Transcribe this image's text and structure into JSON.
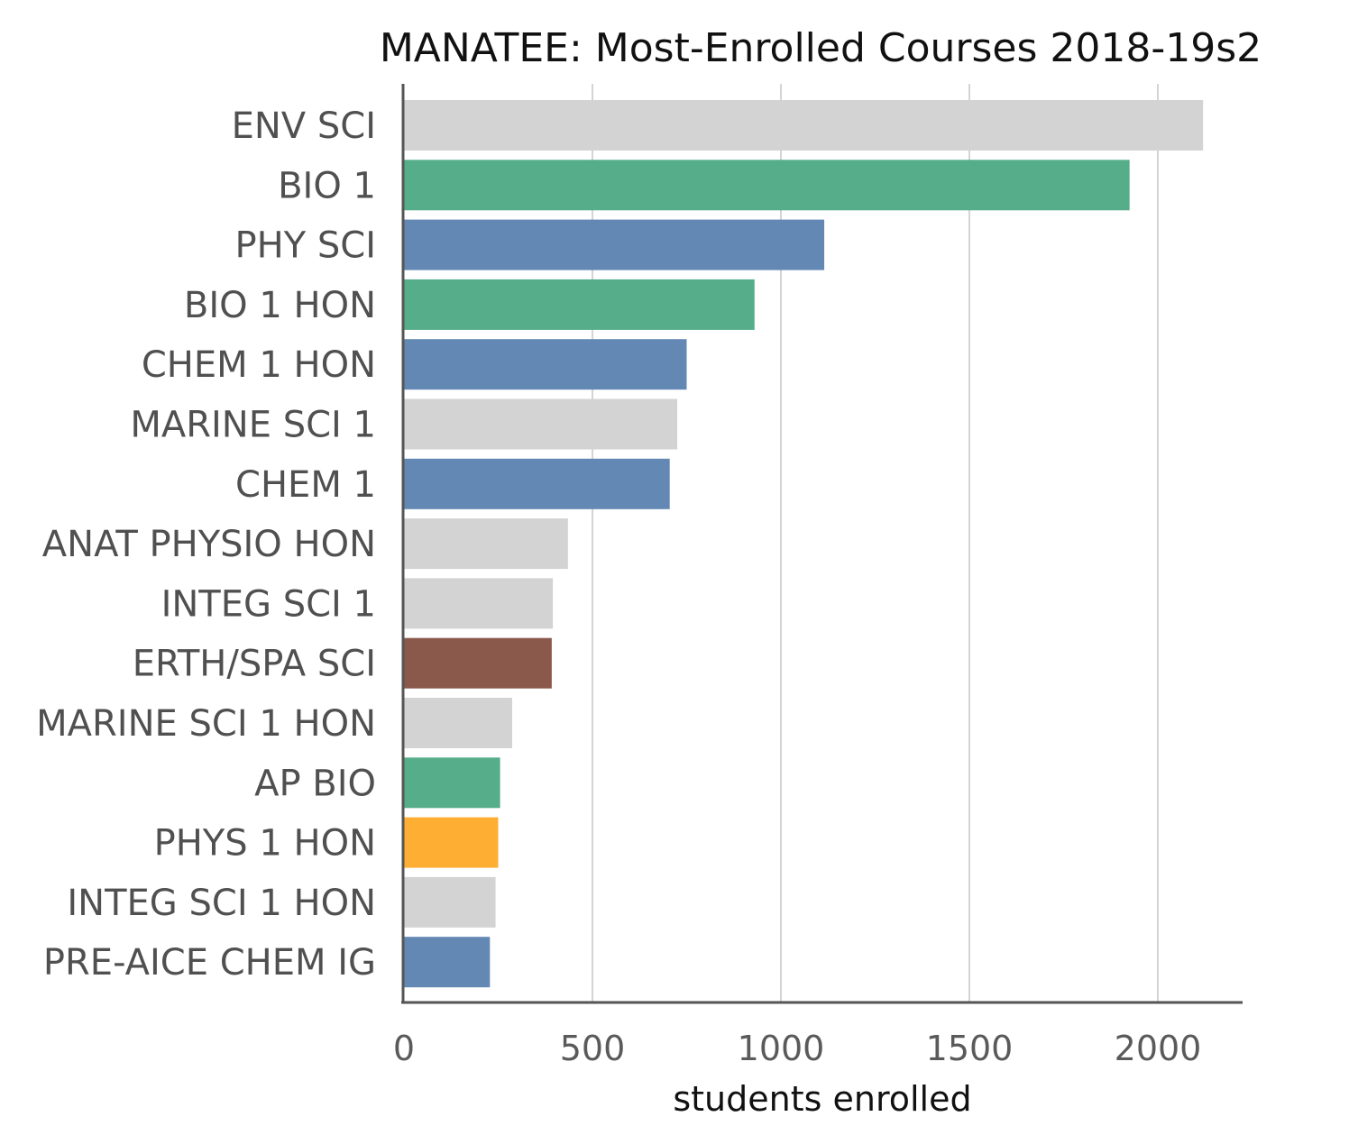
{
  "chart_data": {
    "type": "bar",
    "orientation": "horizontal",
    "title": "MANATEE: Most-Enrolled Courses 2018-19s2",
    "xlabel": "students enrolled",
    "ylabel": "",
    "xlim": [
      0,
      2240
    ],
    "xticks": [
      0,
      500,
      1000,
      1500,
      2000
    ],
    "grid": "vertical",
    "legend": "none",
    "categories": [
      "ENV SCI",
      "BIO 1",
      "PHY SCI",
      "BIO 1 HON",
      "CHEM 1 HON",
      "MARINE SCI 1",
      "CHEM 1",
      "ANAT PHYSIO HON",
      "INTEG SCI 1",
      "ERTH/SPA SCI",
      "MARINE SCI 1 HON",
      "AP BIO",
      "PHYS 1 HON",
      "INTEG SCI 1 HON",
      "PRE-AICE CHEM IG"
    ],
    "values": [
      2120,
      1925,
      1115,
      930,
      750,
      725,
      705,
      435,
      395,
      392,
      287,
      255,
      250,
      243,
      228
    ],
    "colors": [
      "#d3d3d3",
      "#55ad89",
      "#6388b4",
      "#55ad89",
      "#6388b4",
      "#d3d3d3",
      "#6388b4",
      "#d3d3d3",
      "#d3d3d3",
      "#8b584c",
      "#d3d3d3",
      "#55ad89",
      "#ffae34",
      "#d3d3d3",
      "#6388b4"
    ]
  }
}
